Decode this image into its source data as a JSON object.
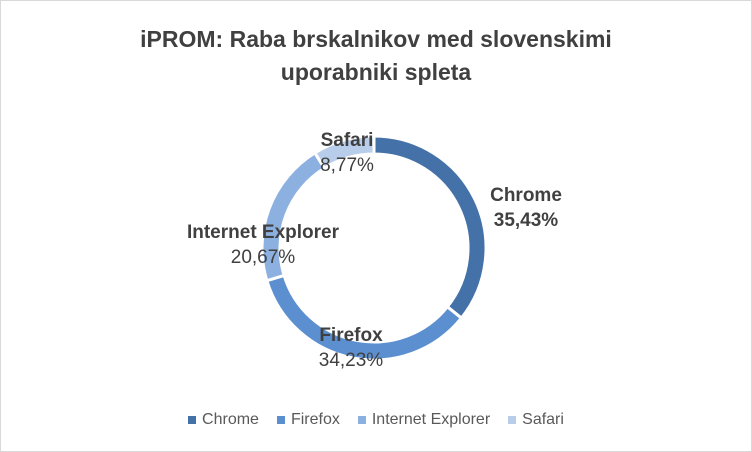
{
  "chart_data": {
    "type": "pie",
    "variant": "donut",
    "title_lines": [
      "iPROM: Raba brskalnikov med slovenskimi",
      "uporabniki spleta"
    ],
    "categories": [
      "Chrome",
      "Firefox",
      "Internet Explorer",
      "Safari"
    ],
    "values": [
      35.43,
      34.23,
      20.67,
      8.77
    ],
    "value_labels": [
      "35,43%",
      "34,23%",
      "20,67%",
      "8,77%"
    ],
    "colors": [
      "#4472a8",
      "#5b8fcf",
      "#8cb0df",
      "#b8cde9"
    ],
    "legend_position": "bottom"
  }
}
